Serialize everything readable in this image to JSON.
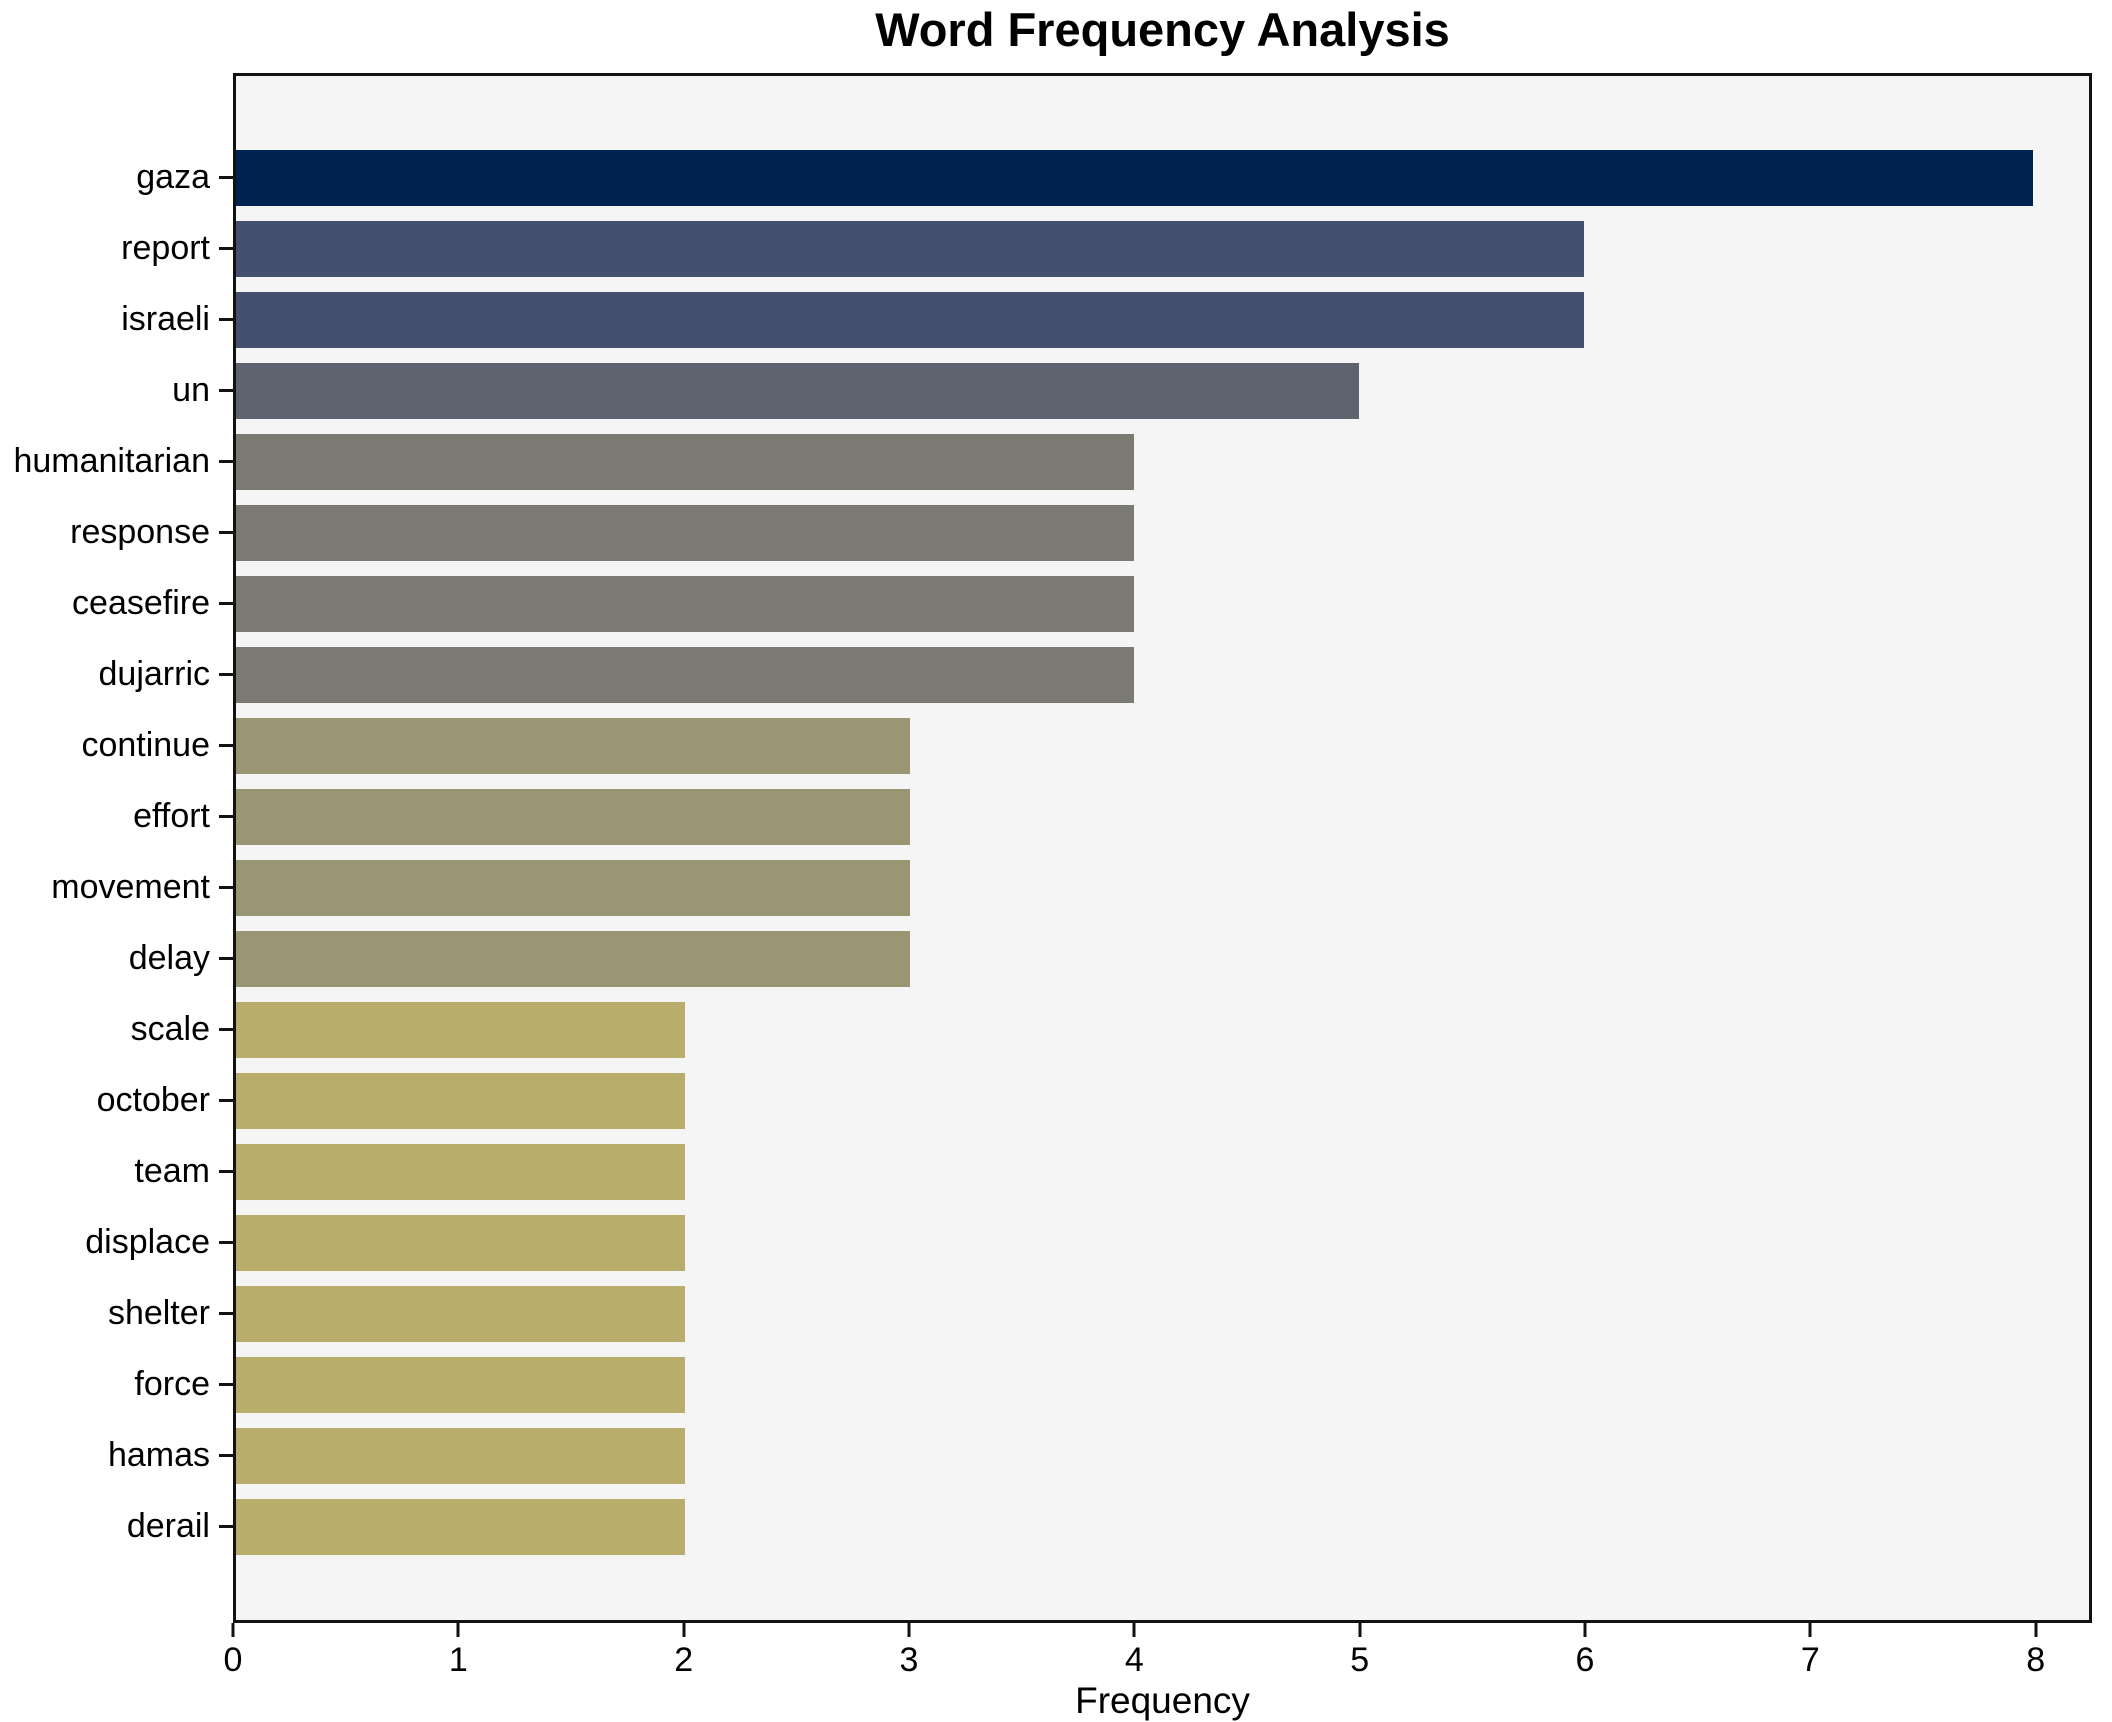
{
  "figure": {
    "background": "#ffffff",
    "plot_background": "#f5f5f6",
    "spine_color": "#121212"
  },
  "chart_data": {
    "type": "bar",
    "orientation": "horizontal",
    "title": "Word Frequency Analysis",
    "xlabel": "Frequency",
    "ylabel": "",
    "categories": [
      "gaza",
      "report",
      "israeli",
      "un",
      "humanitarian",
      "response",
      "ceasefire",
      "dujarric",
      "continue",
      "effort",
      "movement",
      "delay",
      "scale",
      "october",
      "team",
      "displace",
      "shelter",
      "force",
      "hamas",
      "derail"
    ],
    "values": [
      8,
      6,
      6,
      5,
      4,
      4,
      4,
      4,
      3,
      3,
      3,
      3,
      2,
      2,
      2,
      2,
      2,
      2,
      2,
      2
    ],
    "bar_colors": [
      "#00224e",
      "#45506e",
      "#45506e",
      "#5f636f",
      "#7b7a72",
      "#7b7a72",
      "#7b7a72",
      "#7b7a72",
      "#9a9674",
      "#9a9674",
      "#9a9674",
      "#9a9674",
      "#b8ad6b",
      "#b8ad6b",
      "#b8ad6b",
      "#b8ad6b",
      "#b8ad6b",
      "#b8ad6b",
      "#b8ad6b",
      "#b8ad6b"
    ],
    "xlim": [
      0,
      8.25
    ],
    "xticks": [
      0,
      1,
      2,
      3,
      4,
      5,
      6,
      7,
      8
    ],
    "grid": false,
    "legend": null,
    "colormap": "cividis"
  }
}
